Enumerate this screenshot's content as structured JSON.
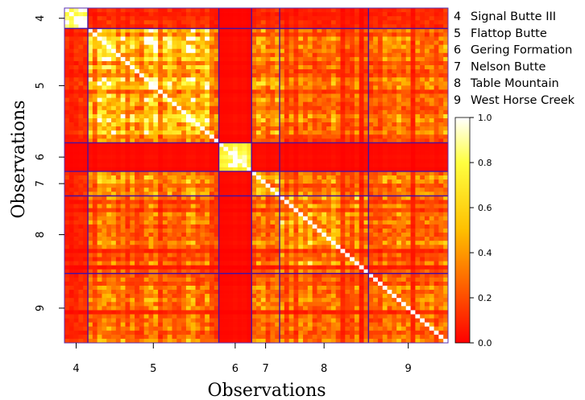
{
  "chart_data": {
    "type": "heatmap",
    "xlabel": "Observations",
    "ylabel": "Observations",
    "groups": [
      {
        "label": "4",
        "count": 5
      },
      {
        "label": "5",
        "count": 28
      },
      {
        "label": "6",
        "count": 7
      },
      {
        "label": "7",
        "count": 6
      },
      {
        "label": "8",
        "count": 19
      },
      {
        "label": "9",
        "count": 17
      }
    ],
    "legend": [
      {
        "code": "4",
        "name": "Signal Butte III"
      },
      {
        "code": "5",
        "name": "Flattop Butte"
      },
      {
        "code": "6",
        "name": "Gering Formation"
      },
      {
        "code": "7",
        "name": "Nelson Butte"
      },
      {
        "code": "8",
        "name": "Table Mountain"
      },
      {
        "code": "9",
        "name": "West Horse Creek"
      }
    ],
    "value_range": [
      0,
      1
    ],
    "colorbar": {
      "ticks": [
        "0.0",
        "0.2",
        "0.4",
        "0.6",
        "0.8",
        "1.0"
      ],
      "tick_values": [
        0,
        0.2,
        0.4,
        0.6,
        0.8,
        1.0
      ],
      "colors": [
        "#ff0000",
        "#ffff00",
        "#ffffff"
      ]
    },
    "block_means": [
      [
        0.75,
        0.1,
        0.02,
        0.1,
        0.08,
        0.1
      ],
      [
        0.1,
        0.55,
        0.05,
        0.35,
        0.3,
        0.3
      ],
      [
        0.02,
        0.05,
        0.65,
        0.05,
        0.05,
        0.05
      ],
      [
        0.1,
        0.35,
        0.05,
        0.4,
        0.3,
        0.3
      ],
      [
        0.08,
        0.3,
        0.05,
        0.3,
        0.5,
        0.3
      ],
      [
        0.1,
        0.3,
        0.05,
        0.3,
        0.3,
        0.3
      ]
    ],
    "divider_color": "#4b0fa0"
  }
}
